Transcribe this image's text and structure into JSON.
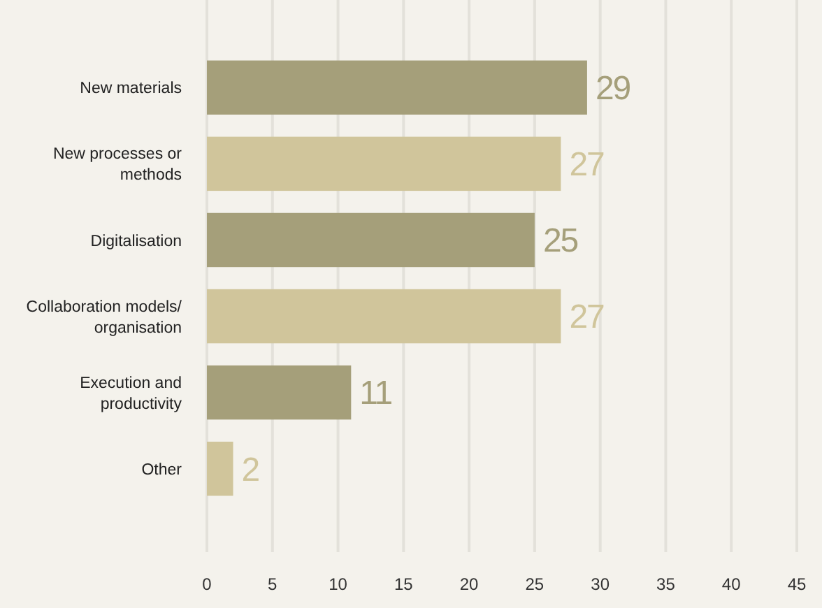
{
  "chart_data": {
    "type": "bar",
    "orientation": "horizontal",
    "categories": [
      "New materials",
      "New processes or\nmethods",
      "Digitalisation",
      "Collaboration models/\norganisation",
      "Execution and\nproductivity",
      "Other"
    ],
    "values": [
      29,
      27,
      25,
      27,
      11,
      2
    ],
    "colors": [
      "#a59f7a",
      "#d0c59b",
      "#a59f7a",
      "#d0c59b",
      "#a59f7a",
      "#d0c59b"
    ],
    "xlim": [
      0,
      45
    ],
    "xticks": [
      0,
      5,
      10,
      15,
      20,
      25,
      30,
      35,
      40,
      45
    ],
    "grid": "x",
    "data_labels": true
  }
}
